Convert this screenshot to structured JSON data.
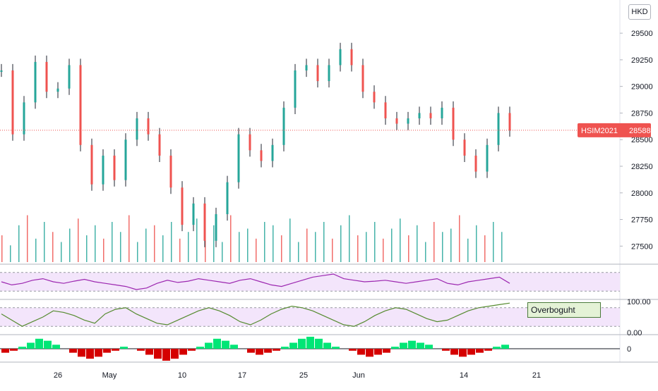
{
  "currency": "HKD",
  "price_tag": {
    "symbol": "HSIM2021",
    "value": "28588",
    "color": "#ef5350"
  },
  "indicator_legend": "Overboguht",
  "colors": {
    "up": "#26a69a",
    "down": "#ef5350",
    "candle": "#1e222d",
    "osc_line_1": "#9c27b0",
    "osc_band_1": "#f3e5fb",
    "osc_line_2": "#558b2f",
    "osc_band_2": "#f3e5fb",
    "histogram_up": "#00e676",
    "histogram_down": "#d50000"
  },
  "chart_data": [
    {
      "type": "candlestick",
      "symbol": "HSIM2021",
      "y_ticks": [
        "29500",
        "29250",
        "29000",
        "28750",
        "28500",
        "28250",
        "28000",
        "27750",
        "27500"
      ],
      "ylim": [
        27350,
        29600
      ],
      "x_ticks": [
        "26",
        "May",
        "10",
        "17",
        "25",
        "Jun",
        "14",
        "21"
      ],
      "last_price": 28588,
      "price_path": [
        {
          "x": "22",
          "y": 29150
        },
        {
          "x": "23",
          "y": 28550
        },
        {
          "x": "24",
          "y": 28850
        },
        {
          "x": "25",
          "y": 29230
        },
        {
          "x": "26",
          "y": 28950
        },
        {
          "x": "27",
          "y": 28980
        },
        {
          "x": "28",
          "y": 29200
        },
        {
          "x": "29",
          "y": 28450
        },
        {
          "x": "30",
          "y": 28080
        },
        {
          "x": "May 1",
          "y": 28350
        },
        {
          "x": "2",
          "y": 28120
        },
        {
          "x": "3",
          "y": 28500
        },
        {
          "x": "4",
          "y": 28700
        },
        {
          "x": "5",
          "y": 28550
        },
        {
          "x": "6",
          "y": 28350
        },
        {
          "x": "7",
          "y": 28050
        },
        {
          "x": "8",
          "y": 27700
        },
        {
          "x": "9",
          "y": 27900
        },
        {
          "x": "10",
          "y": 27550
        },
        {
          "x": "11",
          "y": 27800
        },
        {
          "x": "12",
          "y": 28100
        },
        {
          "x": "13",
          "y": 28550
        },
        {
          "x": "14",
          "y": 28400
        },
        {
          "x": "15",
          "y": 28300
        },
        {
          "x": "16",
          "y": 28450
        },
        {
          "x": "17",
          "y": 28800
        },
        {
          "x": "18",
          "y": 29150
        },
        {
          "x": "19",
          "y": 29200
        },
        {
          "x": "20",
          "y": 29050
        },
        {
          "x": "21",
          "y": 29200
        },
        {
          "x": "22",
          "y": 29350
        },
        {
          "x": "23",
          "y": 29200
        },
        {
          "x": "24",
          "y": 28950
        },
        {
          "x": "25",
          "y": 28850
        },
        {
          "x": "26",
          "y": 28700
        },
        {
          "x": "27",
          "y": 28650
        },
        {
          "x": "28",
          "y": 28700
        },
        {
          "x": "29",
          "y": 28750
        },
        {
          "x": "30",
          "y": 28700
        },
        {
          "x": "31",
          "y": 28800
        },
        {
          "x": "Jun 1",
          "y": 28500
        },
        {
          "x": "2",
          "y": 28350
        },
        {
          "x": "3",
          "y": 28200
        },
        {
          "x": "4",
          "y": 28450
        },
        {
          "x": "5",
          "y": 28750
        },
        {
          "x": "6",
          "y": 28588
        }
      ],
      "volume": {
        "ylim": [
          0,
          100
        ],
        "values": [
          40,
          25,
          55,
          70,
          35,
          60,
          45,
          30,
          50,
          65,
          40,
          55,
          35,
          60,
          45,
          70,
          30,
          50,
          55,
          40,
          60,
          35,
          45,
          65,
          40,
          55,
          30,
          70,
          45,
          50,
          35,
          60,
          55,
          40,
          65,
          30,
          50,
          45,
          60,
          35,
          55,
          70,
          40,
          45,
          60,
          35,
          50,
          65,
          40,
          55,
          30,
          60,
          45,
          50,
          70,
          35,
          55,
          40,
          60,
          45
        ]
      }
    },
    {
      "type": "line",
      "name": "",
      "ylim": [
        0,
        100
      ],
      "band": [
        20,
        80
      ],
      "values": [
        50,
        40,
        45,
        55,
        60,
        50,
        45,
        52,
        58,
        50,
        45,
        40,
        35,
        25,
        30,
        45,
        55,
        48,
        52,
        60,
        55,
        50,
        45,
        55,
        60,
        50,
        40,
        35,
        45,
        55,
        65,
        70,
        75,
        60,
        55,
        50,
        52,
        55,
        50,
        45,
        50,
        55,
        60,
        45,
        40,
        50,
        55,
        60,
        65,
        45
      ]
    },
    {
      "type": "line",
      "name": "",
      "ylim": [
        0,
        100
      ],
      "band": [
        20,
        80
      ],
      "y_ticks": [
        "100.00",
        "0.00"
      ],
      "values": [
        60,
        40,
        20,
        35,
        50,
        70,
        65,
        55,
        40,
        30,
        60,
        75,
        80,
        60,
        45,
        30,
        25,
        40,
        55,
        70,
        80,
        70,
        55,
        35,
        25,
        40,
        60,
        75,
        85,
        80,
        70,
        55,
        40,
        25,
        20,
        35,
        55,
        70,
        80,
        75,
        60,
        45,
        35,
        40,
        55,
        70,
        80,
        85,
        90,
        95
      ]
    },
    {
      "type": "bar",
      "name": "",
      "y_ticks": [
        "0"
      ],
      "values": [
        -2,
        -1,
        1,
        3,
        5,
        4,
        2,
        0,
        -2,
        -4,
        -5,
        -4,
        -2,
        -1,
        1,
        0,
        -1,
        -3,
        -5,
        -6,
        -5,
        -3,
        -1,
        1,
        3,
        5,
        4,
        2,
        0,
        -2,
        -3,
        -2,
        -1,
        1,
        3,
        5,
        6,
        5,
        3,
        1,
        0,
        -1,
        -3,
        -4,
        -3,
        -2,
        1,
        3,
        4,
        3,
        2,
        0,
        -1,
        -3,
        -4,
        -3,
        -2,
        -1,
        1,
        2
      ]
    }
  ]
}
